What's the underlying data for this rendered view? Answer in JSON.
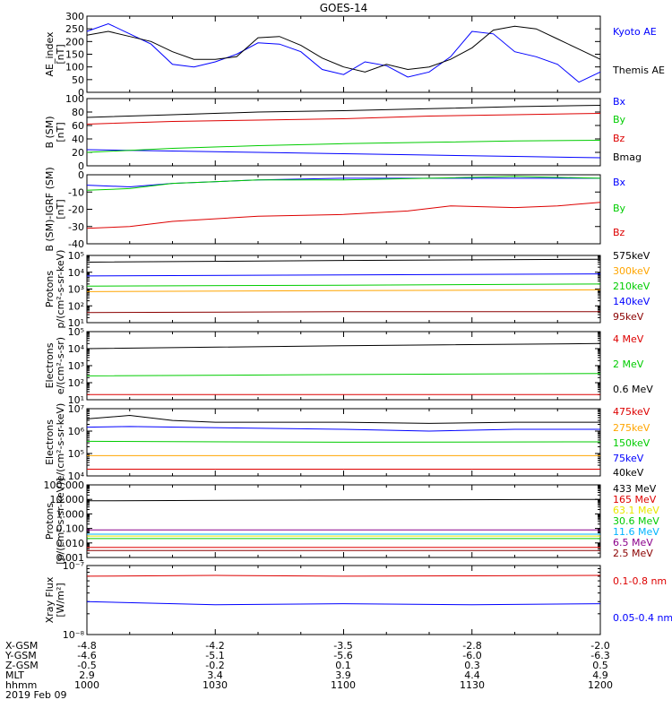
{
  "title": "GOES-14",
  "colors": {
    "black": "#000000",
    "blue": "#0000ff",
    "green": "#00cc00",
    "red": "#dd0000",
    "orange": "#ffa500",
    "cyan": "#00b4ff",
    "navy": "#00008b",
    "yellow": "#e8e800",
    "darkred": "#8b0000",
    "purple": "#8b008b"
  },
  "footer": {
    "rows": [
      "X-GSM",
      "Y-GSM",
      "Z-GSM",
      "MLT",
      "hhmm",
      "2019 Feb 09"
    ],
    "columns": [
      [
        "-4.8",
        "-4.6",
        "-0.5",
        "2.9",
        "1000"
      ],
      [
        "-4.2",
        "-5.1",
        "-0.2",
        "3.4",
        "1030"
      ],
      [
        "-3.5",
        "-5.6",
        "0.1",
        "3.9",
        "1100"
      ],
      [
        "-2.8",
        "-6.0",
        "0.3",
        "4.4",
        "1130"
      ],
      [
        "-2.0",
        "-6.3",
        "0.5",
        "4.9",
        "1200"
      ]
    ]
  },
  "chart_data": [
    {
      "type": "line",
      "name": "ae-index",
      "ylabel": [
        "AE_index",
        "[nT]"
      ],
      "yscale": "linear",
      "ylim": [
        0,
        300
      ],
      "yticks": [
        "0",
        "50",
        "100",
        "150",
        "200",
        "250",
        "300"
      ],
      "ytick_values": [
        0,
        50,
        100,
        150,
        200,
        250,
        300
      ],
      "xlim": [
        0,
        120
      ],
      "series": [
        {
          "name": "Kyoto AE",
          "color": "blue",
          "x": [
            0,
            5,
            10,
            15,
            20,
            25,
            30,
            35,
            40,
            45,
            50,
            55,
            60,
            65,
            70,
            75,
            80,
            85,
            90,
            95,
            100,
            105,
            110,
            115,
            120
          ],
          "y": [
            240,
            270,
            230,
            190,
            110,
            100,
            120,
            150,
            195,
            190,
            160,
            90,
            70,
            120,
            105,
            60,
            80,
            140,
            240,
            230,
            160,
            140,
            110,
            40,
            80
          ]
        },
        {
          "name": "Themis AE",
          "color": "black",
          "x": [
            0,
            5,
            10,
            15,
            20,
            25,
            30,
            35,
            40,
            45,
            50,
            55,
            60,
            65,
            70,
            75,
            80,
            85,
            90,
            95,
            100,
            105,
            110,
            115,
            120
          ],
          "y": [
            225,
            240,
            220,
            200,
            160,
            130,
            130,
            140,
            215,
            220,
            185,
            135,
            100,
            80,
            110,
            90,
            100,
            130,
            175,
            245,
            260,
            250,
            210,
            170,
            130
          ]
        }
      ]
    },
    {
      "type": "line",
      "name": "b-sm",
      "ylabel": [
        "B (SM)",
        "[nT]"
      ],
      "yscale": "linear",
      "ylim": [
        0,
        100
      ],
      "yticks": [
        "0",
        "20",
        "40",
        "60",
        "80",
        "100"
      ],
      "ytick_values": [
        0,
        20,
        40,
        60,
        80,
        100
      ],
      "xlim": [
        0,
        120
      ],
      "series": [
        {
          "name": "Bx",
          "color": "blue",
          "x": [
            0,
            20,
            40,
            60,
            80,
            100,
            120
          ],
          "y": [
            24,
            22,
            20,
            18,
            16,
            14,
            12
          ]
        },
        {
          "name": "By",
          "color": "green",
          "x": [
            0,
            20,
            40,
            60,
            80,
            100,
            120
          ],
          "y": [
            20,
            26,
            30,
            33,
            35,
            37,
            38
          ]
        },
        {
          "name": "Bz",
          "color": "red",
          "x": [
            0,
            20,
            40,
            60,
            80,
            100,
            120
          ],
          "y": [
            62,
            66,
            68,
            70,
            74,
            76,
            78
          ]
        },
        {
          "name": "Bmag",
          "color": "black",
          "x": [
            0,
            20,
            40,
            60,
            80,
            100,
            120
          ],
          "y": [
            72,
            76,
            80,
            82,
            85,
            88,
            90
          ]
        }
      ]
    },
    {
      "type": "line",
      "name": "b-sm-igrf",
      "ylabel": [
        "B (SM)-IGRF (SM)",
        "[nT]"
      ],
      "yscale": "linear",
      "ylim": [
        -40,
        0
      ],
      "yticks": [
        "-40",
        "-30",
        "-20",
        "-10",
        "0"
      ],
      "ytick_values": [
        -40,
        -30,
        -20,
        -10,
        0
      ],
      "xlim": [
        0,
        120
      ],
      "series": [
        {
          "name": "Bx",
          "color": "blue",
          "x": [
            0,
            10,
            20,
            40,
            60,
            80,
            100,
            120
          ],
          "y": [
            -6,
            -7,
            -5,
            -3,
            -2,
            -2,
            -2,
            -2
          ]
        },
        {
          "name": "By",
          "color": "green",
          "x": [
            0,
            10,
            20,
            40,
            60,
            80,
            100,
            120
          ],
          "y": [
            -9,
            -8,
            -5,
            -3,
            -3,
            -2,
            -1,
            -2
          ]
        },
        {
          "name": "Bz",
          "color": "red",
          "x": [
            0,
            10,
            20,
            40,
            60,
            75,
            85,
            100,
            110,
            120
          ],
          "y": [
            -31,
            -30,
            -27,
            -24,
            -23,
            -21,
            -18,
            -19,
            -18,
            -16
          ]
        }
      ]
    },
    {
      "type": "line",
      "name": "protons-low",
      "ylabel": [
        "Protons",
        "p/(cm²-s-sr-keV)"
      ],
      "yscale": "log",
      "ylim": [
        10,
        100000
      ],
      "yticks": [
        "10¹",
        "10²",
        "10³",
        "10⁴",
        "10⁵"
      ],
      "ytick_values": [
        10,
        100,
        1000,
        10000,
        100000
      ],
      "xlim": [
        0,
        120
      ],
      "series": [
        {
          "name": "575keV",
          "color": "black",
          "x": [
            0,
            60,
            120
          ],
          "y": [
            40000,
            50000,
            60000
          ]
        },
        {
          "name": "300keV",
          "color": "orange",
          "x": [
            0,
            60,
            120
          ],
          "y": [
            700,
            800,
            900
          ]
        },
        {
          "name": "210keV",
          "color": "green",
          "x": [
            0,
            60,
            120
          ],
          "y": [
            1500,
            1700,
            2000
          ]
        },
        {
          "name": "140keV",
          "color": "blue",
          "x": [
            0,
            60,
            120
          ],
          "y": [
            6000,
            7000,
            8000
          ]
        },
        {
          "name": "95keV",
          "color": "darkred",
          "x": [
            0,
            60,
            120
          ],
          "y": [
            40,
            45,
            45
          ]
        }
      ]
    },
    {
      "type": "line",
      "name": "electrons-high",
      "ylabel": [
        "Electrons",
        "e/(cm²-s-sr)"
      ],
      "yscale": "log",
      "ylim": [
        10,
        100000
      ],
      "yticks": [
        "10¹",
        "10²",
        "10³",
        "10⁴",
        "10⁵"
      ],
      "ytick_values": [
        10,
        100,
        1000,
        10000,
        100000
      ],
      "xlim": [
        0,
        120
      ],
      "series": [
        {
          "name": "4 MeV",
          "color": "red",
          "x": [
            0,
            60,
            120
          ],
          "y": [
            20,
            20,
            20
          ]
        },
        {
          "name": "2 MeV",
          "color": "green",
          "x": [
            0,
            60,
            120
          ],
          "y": [
            250,
            300,
            350
          ]
        },
        {
          "name": "0.6 MeV",
          "color": "black",
          "x": [
            0,
            60,
            120
          ],
          "y": [
            10000,
            15000,
            20000
          ]
        }
      ]
    },
    {
      "type": "line",
      "name": "electrons-low",
      "ylabel": [
        "Electrons",
        "e/(cm²-s-sr-keV)"
      ],
      "yscale": "log",
      "ylim": [
        10000,
        10000000
      ],
      "yticks": [
        "10⁴",
        "10⁵",
        "10⁶",
        "10⁷"
      ],
      "ytick_values": [
        10000,
        100000,
        1000000,
        10000000
      ],
      "xlim": [
        0,
        120
      ],
      "series": [
        {
          "name": "475keV",
          "color": "red",
          "x": [
            0,
            60,
            120
          ],
          "y": [
            20000,
            20000,
            20000
          ]
        },
        {
          "name": "275keV",
          "color": "orange",
          "x": [
            0,
            60,
            120
          ],
          "y": [
            80000,
            80000,
            80000
          ]
        },
        {
          "name": "150keV",
          "color": "green",
          "x": [
            0,
            60,
            120
          ],
          "y": [
            350000,
            320000,
            330000
          ]
        },
        {
          "name": "75keV",
          "color": "blue",
          "x": [
            0,
            10,
            60,
            80,
            100,
            120
          ],
          "y": [
            1500000,
            1600000,
            1200000,
            1000000,
            1200000,
            1200000
          ]
        },
        {
          "name": "40keV",
          "color": "black",
          "x": [
            0,
            10,
            20,
            30,
            60,
            80,
            100,
            120
          ],
          "y": [
            3500000,
            5000000,
            3000000,
            2500000,
            2500000,
            2200000,
            2500000,
            2500000
          ]
        }
      ]
    },
    {
      "type": "line",
      "name": "protons-high",
      "ylabel": [
        "Protons",
        "[p/(cm²-s-sr-keV)]"
      ],
      "yscale": "log",
      "ylim": [
        0.001,
        100
      ],
      "yticks": [
        "0.001",
        "0.010",
        "0.100",
        "1.000",
        "10.000",
        "100.000"
      ],
      "ytick_values": [
        0.001,
        0.01,
        0.1,
        1,
        10,
        100
      ],
      "xlim": [
        0,
        120
      ],
      "series": [
        {
          "name": "433 MeV",
          "color": "black",
          "x": [
            0,
            60,
            120
          ],
          "y": [
            8,
            9,
            10
          ]
        },
        {
          "name": "165 MeV",
          "color": "red",
          "x": [
            0,
            60,
            120
          ],
          "y": [
            0.005,
            0.005,
            0.005
          ]
        },
        {
          "name": "63.1 MeV",
          "color": "yellow",
          "x": [
            0,
            60,
            120
          ],
          "y": [
            0.03,
            0.03,
            0.03
          ]
        },
        {
          "name": "30.6 MeV",
          "color": "green",
          "x": [
            0,
            60,
            120
          ],
          "y": [
            0.02,
            0.02,
            0.02
          ]
        },
        {
          "name": "11.6 MeV",
          "color": "cyan",
          "x": [
            0,
            60,
            120
          ],
          "y": [
            0.04,
            0.04,
            0.04
          ]
        },
        {
          "name": "6.5 MeV",
          "color": "purple",
          "x": [
            0,
            60,
            120
          ],
          "y": [
            0.08,
            0.08,
            0.08
          ]
        },
        {
          "name": "2.5 MeV",
          "color": "darkred",
          "x": [
            0,
            60,
            120
          ],
          "y": [
            0.003,
            0.003,
            0.003
          ]
        }
      ]
    },
    {
      "type": "line",
      "name": "xray-flux",
      "ylabel": [
        "Xray Flux",
        "[W/m²]"
      ],
      "yscale": "log",
      "ylim": [
        1e-08,
        1e-07
      ],
      "yticks": [
        "10⁻⁸",
        "10⁻⁷"
      ],
      "ytick_values": [
        1e-08,
        1e-07
      ],
      "xlim": [
        0,
        120
      ],
      "series": [
        {
          "name": "0.1-0.8 nm",
          "color": "red",
          "x": [
            0,
            30,
            60,
            90,
            120
          ],
          "y": [
            7e-08,
            7.2e-08,
            7e-08,
            7.1e-08,
            7.2e-08
          ]
        },
        {
          "name": "0.05-0.4 nm",
          "color": "blue",
          "x": [
            0,
            30,
            60,
            90,
            120
          ],
          "y": [
            3e-08,
            2.7e-08,
            2.8e-08,
            2.7e-08,
            2.8e-08
          ]
        }
      ]
    }
  ]
}
